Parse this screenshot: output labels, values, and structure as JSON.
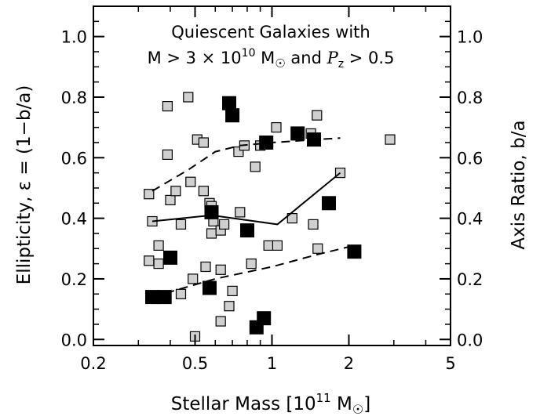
{
  "chart_data": {
    "type": "scatter",
    "annotation": [
      "Quiescent Galaxies with",
      "M > 3 × 10",
      "10",
      " M",
      " and ",
      "P",
      "z",
      " > 0.5"
    ],
    "xlabel": [
      "Stellar Mass [10",
      "11",
      " M",
      "]"
    ],
    "ylabel": "Ellipticity, ε = (1−b/a)",
    "y2label": "Axis Ratio, b/a",
    "x_scale": "log",
    "xlim": [
      0.2,
      5
    ],
    "ylim": [
      -0.02,
      1.1
    ],
    "x_ticks": [
      0.2,
      0.5,
      1,
      2,
      5
    ],
    "x_tick_labels": [
      "0.2",
      "0.5",
      "1",
      "2",
      "5"
    ],
    "y_ticks": [
      0.0,
      0.2,
      0.4,
      0.6,
      0.8,
      1.0
    ],
    "y_tick_labels": [
      "0.0",
      "0.2",
      "0.4",
      "0.6",
      "0.8",
      "1.0"
    ],
    "y2_tick_labels": [
      "1.0",
      "0.8",
      "0.6",
      "0.4",
      "0.2",
      "0.0"
    ],
    "grid": false,
    "colors": {
      "gray_marker": "#d0d0d0",
      "black_marker": "#000000"
    },
    "series": [
      {
        "marker": "gray-square",
        "points": [
          [
            0.33,
            0.48
          ],
          [
            0.34,
            0.39
          ],
          [
            0.33,
            0.26
          ],
          [
            0.36,
            0.31
          ],
          [
            0.36,
            0.25
          ],
          [
            0.39,
            0.77
          ],
          [
            0.39,
            0.61
          ],
          [
            0.4,
            0.46
          ],
          [
            0.42,
            0.49
          ],
          [
            0.44,
            0.38
          ],
          [
            0.44,
            0.15
          ],
          [
            0.47,
            0.8
          ],
          [
            0.48,
            0.52
          ],
          [
            0.49,
            0.2
          ],
          [
            0.5,
            0.01
          ],
          [
            0.51,
            0.66
          ],
          [
            0.54,
            0.65
          ],
          [
            0.54,
            0.49
          ],
          [
            0.55,
            0.24
          ],
          [
            0.57,
            0.45
          ],
          [
            0.58,
            0.44
          ],
          [
            0.58,
            0.35
          ],
          [
            0.59,
            0.39
          ],
          [
            0.63,
            0.36
          ],
          [
            0.63,
            0.23
          ],
          [
            0.63,
            0.06
          ],
          [
            0.65,
            0.38
          ],
          [
            0.68,
            0.11
          ],
          [
            0.7,
            0.16
          ],
          [
            0.74,
            0.62
          ],
          [
            0.75,
            0.42
          ],
          [
            0.78,
            0.64
          ],
          [
            0.83,
            0.25
          ],
          [
            0.86,
            0.57
          ],
          [
            0.9,
            0.64
          ],
          [
            0.97,
            0.31
          ],
          [
            1.04,
            0.7
          ],
          [
            1.05,
            0.31
          ],
          [
            1.2,
            0.4
          ],
          [
            1.42,
            0.68
          ],
          [
            1.45,
            0.38
          ],
          [
            1.5,
            0.74
          ],
          [
            1.51,
            0.3
          ],
          [
            1.85,
            0.55
          ],
          [
            2.9,
            0.66
          ]
        ]
      },
      {
        "marker": "black-square",
        "points": [
          [
            0.34,
            0.14
          ],
          [
            0.38,
            0.14
          ],
          [
            0.4,
            0.27
          ],
          [
            0.57,
            0.17
          ],
          [
            0.58,
            0.42
          ],
          [
            0.68,
            0.78
          ],
          [
            0.7,
            0.74
          ],
          [
            0.8,
            0.36
          ],
          [
            0.87,
            0.04
          ],
          [
            0.93,
            0.07
          ],
          [
            0.95,
            0.65
          ],
          [
            1.26,
            0.68
          ],
          [
            1.46,
            0.66
          ],
          [
            1.67,
            0.45
          ],
          [
            2.1,
            0.29
          ]
        ]
      }
    ],
    "lines": [
      {
        "style": "solid",
        "points": [
          [
            0.34,
            0.39
          ],
          [
            0.58,
            0.41
          ],
          [
            1.05,
            0.38
          ],
          [
            1.85,
            0.55
          ]
        ]
      },
      {
        "style": "dashed",
        "points": [
          [
            0.34,
            0.49
          ],
          [
            0.47,
            0.56
          ],
          [
            0.6,
            0.62
          ],
          [
            0.75,
            0.64
          ],
          [
            1.0,
            0.65
          ],
          [
            1.5,
            0.66
          ],
          [
            1.85,
            0.665
          ]
        ]
      },
      {
        "style": "dashed",
        "points": [
          [
            0.34,
            0.14
          ],
          [
            0.6,
            0.2
          ],
          [
            1.0,
            0.24
          ],
          [
            1.5,
            0.28
          ],
          [
            2.1,
            0.31
          ]
        ]
      }
    ]
  }
}
